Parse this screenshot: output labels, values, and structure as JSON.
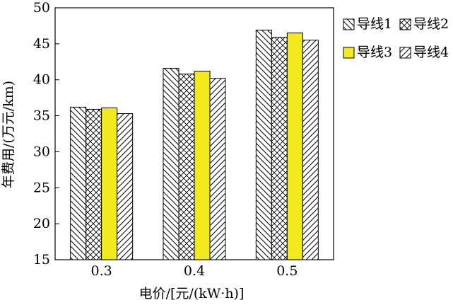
{
  "chart_data": {
    "type": "bar",
    "xlabel": "电价/[元/(kW·h)]",
    "ylabel": "年费用/(万元/km)",
    "ylim": [
      15,
      50
    ],
    "yticks": [
      15,
      20,
      25,
      30,
      35,
      40,
      45,
      50
    ],
    "categories": [
      "0.3",
      "0.4",
      "0.5"
    ],
    "series": [
      {
        "name": "导线1",
        "values": [
          36.2,
          41.6,
          46.9
        ],
        "pattern": "diag-back",
        "color": "#ffffff"
      },
      {
        "name": "导线2",
        "values": [
          35.9,
          40.8,
          45.9
        ],
        "pattern": "crosshatch",
        "color": "#ffffff"
      },
      {
        "name": "导线3",
        "values": [
          36.1,
          41.2,
          46.5
        ],
        "pattern": "solid",
        "color": "#f2ea1e"
      },
      {
        "name": "导线4",
        "values": [
          35.3,
          40.2,
          45.5
        ],
        "pattern": "diag-fwd",
        "color": "#ffffff"
      }
    ],
    "legend_position": "top-right",
    "grid": false
  }
}
